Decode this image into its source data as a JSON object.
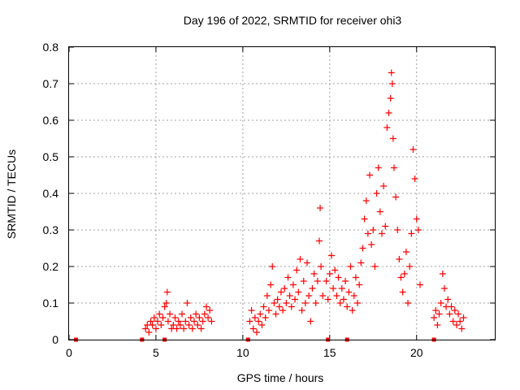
{
  "chart_data": {
    "type": "scatter",
    "title": "Day 196 of 2022, SRMTID for receiver ohi3",
    "xlabel": "GPS time / hours",
    "ylabel": "SRMTID / TECUs",
    "xlim": [
      0,
      24.5
    ],
    "ylim": [
      0,
      0.8
    ],
    "xticks": [
      0,
      5,
      10,
      15,
      20
    ],
    "yticks": [
      0,
      0.1,
      0.2,
      0.3,
      0.4,
      0.5,
      0.6,
      0.7,
      0.8
    ],
    "xtick_labels": [
      "0",
      "5",
      "10",
      "15",
      "20"
    ],
    "ytick_labels": [
      "0",
      "0.1",
      "0.2",
      "0.3",
      "0.4",
      "0.5",
      "0.6",
      "0.7",
      "0.8"
    ],
    "grid": true,
    "marker": "plus",
    "marker_color": "#ff0000",
    "series": [
      {
        "name": "SRMTID",
        "points": [
          [
            4.4,
            0.03
          ],
          [
            4.5,
            0.04
          ],
          [
            4.6,
            0.02
          ],
          [
            4.7,
            0.05
          ],
          [
            4.8,
            0.04
          ],
          [
            4.9,
            0.06
          ],
          [
            5.0,
            0.03
          ],
          [
            5.1,
            0.05
          ],
          [
            5.2,
            0.07
          ],
          [
            5.3,
            0.04
          ],
          [
            5.4,
            0.06
          ],
          [
            5.5,
            0.09
          ],
          [
            5.6,
            0.1
          ],
          [
            5.65,
            0.13
          ],
          [
            5.7,
            0.05
          ],
          [
            5.8,
            0.07
          ],
          [
            5.9,
            0.03
          ],
          [
            6.0,
            0.04
          ],
          [
            6.1,
            0.06
          ],
          [
            6.2,
            0.03
          ],
          [
            6.3,
            0.05
          ],
          [
            6.4,
            0.04
          ],
          [
            6.5,
            0.07
          ],
          [
            6.6,
            0.03
          ],
          [
            6.7,
            0.05
          ],
          [
            6.8,
            0.1
          ],
          [
            6.9,
            0.04
          ],
          [
            7.0,
            0.06
          ],
          [
            7.1,
            0.03
          ],
          [
            7.2,
            0.05
          ],
          [
            7.3,
            0.07
          ],
          [
            7.4,
            0.04
          ],
          [
            7.5,
            0.06
          ],
          [
            7.6,
            0.03
          ],
          [
            7.7,
            0.05
          ],
          [
            7.8,
            0.07
          ],
          [
            7.9,
            0.09
          ],
          [
            8.0,
            0.06
          ],
          [
            8.1,
            0.08
          ],
          [
            8.2,
            0.05
          ],
          [
            10.4,
            0.05
          ],
          [
            10.5,
            0.08
          ],
          [
            10.6,
            0.03
          ],
          [
            10.7,
            0.06
          ],
          [
            10.8,
            0.02
          ],
          [
            10.9,
            0.05
          ],
          [
            11.0,
            0.07
          ],
          [
            11.1,
            0.04
          ],
          [
            11.2,
            0.09
          ],
          [
            11.3,
            0.06
          ],
          [
            11.4,
            0.12
          ],
          [
            11.5,
            0.08
          ],
          [
            11.6,
            0.15
          ],
          [
            11.7,
            0.2
          ],
          [
            11.8,
            0.1
          ],
          [
            11.9,
            0.07
          ],
          [
            12.0,
            0.11
          ],
          [
            12.1,
            0.09
          ],
          [
            12.2,
            0.13
          ],
          [
            12.3,
            0.08
          ],
          [
            12.4,
            0.14
          ],
          [
            12.5,
            0.1
          ],
          [
            12.6,
            0.17
          ],
          [
            12.7,
            0.12
          ],
          [
            12.8,
            0.09
          ],
          [
            12.9,
            0.15
          ],
          [
            13.0,
            0.11
          ],
          [
            13.1,
            0.19
          ],
          [
            13.2,
            0.13
          ],
          [
            13.3,
            0.22
          ],
          [
            13.4,
            0.08
          ],
          [
            13.5,
            0.16
          ],
          [
            13.6,
            0.1
          ],
          [
            13.7,
            0.21
          ],
          [
            13.8,
            0.12
          ],
          [
            13.9,
            0.05
          ],
          [
            14.0,
            0.14
          ],
          [
            14.1,
            0.18
          ],
          [
            14.2,
            0.1
          ],
          [
            14.3,
            0.16
          ],
          [
            14.4,
            0.27
          ],
          [
            14.45,
            0.36
          ],
          [
            14.5,
            0.2
          ],
          [
            14.6,
            0.12
          ],
          [
            14.8,
            0.16
          ],
          [
            14.9,
            0.11
          ],
          [
            15.0,
            0.18
          ],
          [
            15.1,
            0.23
          ],
          [
            15.2,
            0.14
          ],
          [
            15.3,
            0.19
          ],
          [
            15.4,
            0.12
          ],
          [
            15.5,
            0.17
          ],
          [
            15.6,
            0.1
          ],
          [
            15.7,
            0.14
          ],
          [
            15.8,
            0.11
          ],
          [
            15.9,
            0.16
          ],
          [
            16.0,
            0.09
          ],
          [
            16.1,
            0.13
          ],
          [
            16.2,
            0.2
          ],
          [
            16.3,
            0.08
          ],
          [
            16.4,
            0.12
          ],
          [
            16.5,
            0.17
          ],
          [
            16.6,
            0.1
          ],
          [
            16.7,
            0.15
          ],
          [
            16.8,
            0.21
          ],
          [
            16.9,
            0.25
          ],
          [
            17.0,
            0.33
          ],
          [
            17.1,
            0.38
          ],
          [
            17.2,
            0.29
          ],
          [
            17.3,
            0.45
          ],
          [
            17.4,
            0.26
          ],
          [
            17.5,
            0.3
          ],
          [
            17.6,
            0.2
          ],
          [
            17.7,
            0.4
          ],
          [
            17.8,
            0.47
          ],
          [
            17.9,
            0.35
          ],
          [
            18.0,
            0.29
          ],
          [
            18.1,
            0.42
          ],
          [
            18.2,
            0.31
          ],
          [
            18.3,
            0.58
          ],
          [
            18.4,
            0.62
          ],
          [
            18.5,
            0.66
          ],
          [
            18.55,
            0.73
          ],
          [
            18.6,
            0.7
          ],
          [
            18.65,
            0.55
          ],
          [
            18.7,
            0.47
          ],
          [
            18.8,
            0.39
          ],
          [
            18.9,
            0.3
          ],
          [
            19.0,
            0.22
          ],
          [
            19.1,
            0.17
          ],
          [
            19.2,
            0.13
          ],
          [
            19.3,
            0.18
          ],
          [
            19.4,
            0.24
          ],
          [
            19.5,
            0.1
          ],
          [
            19.6,
            0.2
          ],
          [
            19.7,
            0.29
          ],
          [
            19.8,
            0.52
          ],
          [
            19.9,
            0.44
          ],
          [
            20.0,
            0.33
          ],
          [
            20.1,
            0.3
          ],
          [
            20.2,
            0.15
          ],
          [
            21.0,
            0.06
          ],
          [
            21.1,
            0.08
          ],
          [
            21.2,
            0.04
          ],
          [
            21.3,
            0.07
          ],
          [
            21.4,
            0.1
          ],
          [
            21.5,
            0.18
          ],
          [
            21.6,
            0.14
          ],
          [
            21.7,
            0.09
          ],
          [
            21.8,
            0.11
          ],
          [
            21.9,
            0.07
          ],
          [
            22.0,
            0.09
          ],
          [
            22.1,
            0.05
          ],
          [
            22.2,
            0.08
          ],
          [
            22.3,
            0.04
          ],
          [
            22.4,
            0.07
          ],
          [
            22.5,
            0.05
          ],
          [
            22.6,
            0.03
          ],
          [
            22.7,
            0.06
          ]
        ]
      }
    ],
    "baseline_marks": [
      0.4,
      4.2,
      5.5,
      10.3,
      14.9,
      16.0,
      21.0
    ]
  }
}
